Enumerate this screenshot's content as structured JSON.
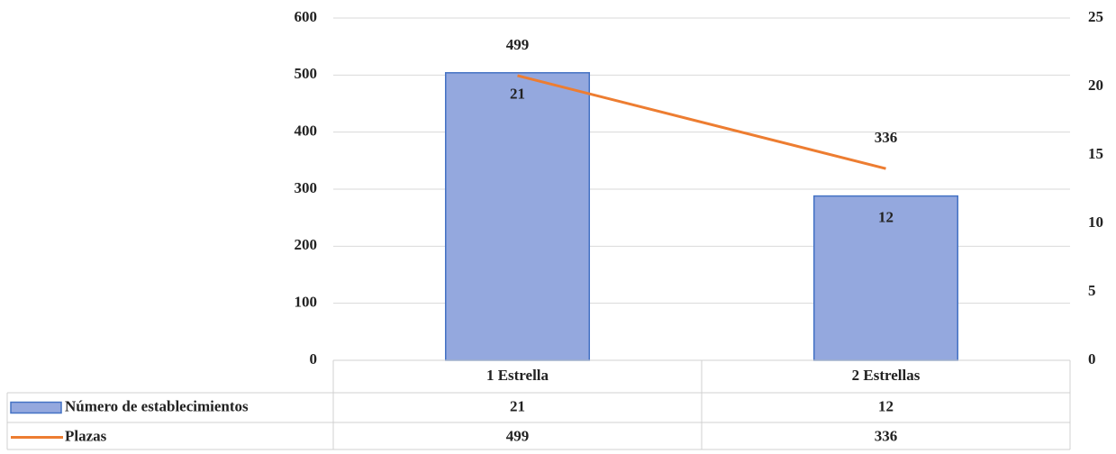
{
  "chart_data": {
    "type": "combo",
    "categories": [
      "1 Estrella",
      "2 Estrellas"
    ],
    "series": [
      {
        "name": "Número de establecimientos",
        "type": "bar",
        "axis": "y2",
        "color": "#94a8de",
        "values": [
          21,
          12
        ]
      },
      {
        "name": "Plazas",
        "type": "line",
        "color": "#ed7d31",
        "values": [
          499,
          336
        ]
      }
    ],
    "ylim": [
      0,
      600
    ],
    "yticks": [
      0,
      100,
      200,
      300,
      400,
      500,
      600
    ],
    "y2lim": [
      0,
      25
    ],
    "y2ticks": [
      0,
      5,
      10,
      15,
      20,
      25
    ],
    "grid": true,
    "data_table": true
  }
}
